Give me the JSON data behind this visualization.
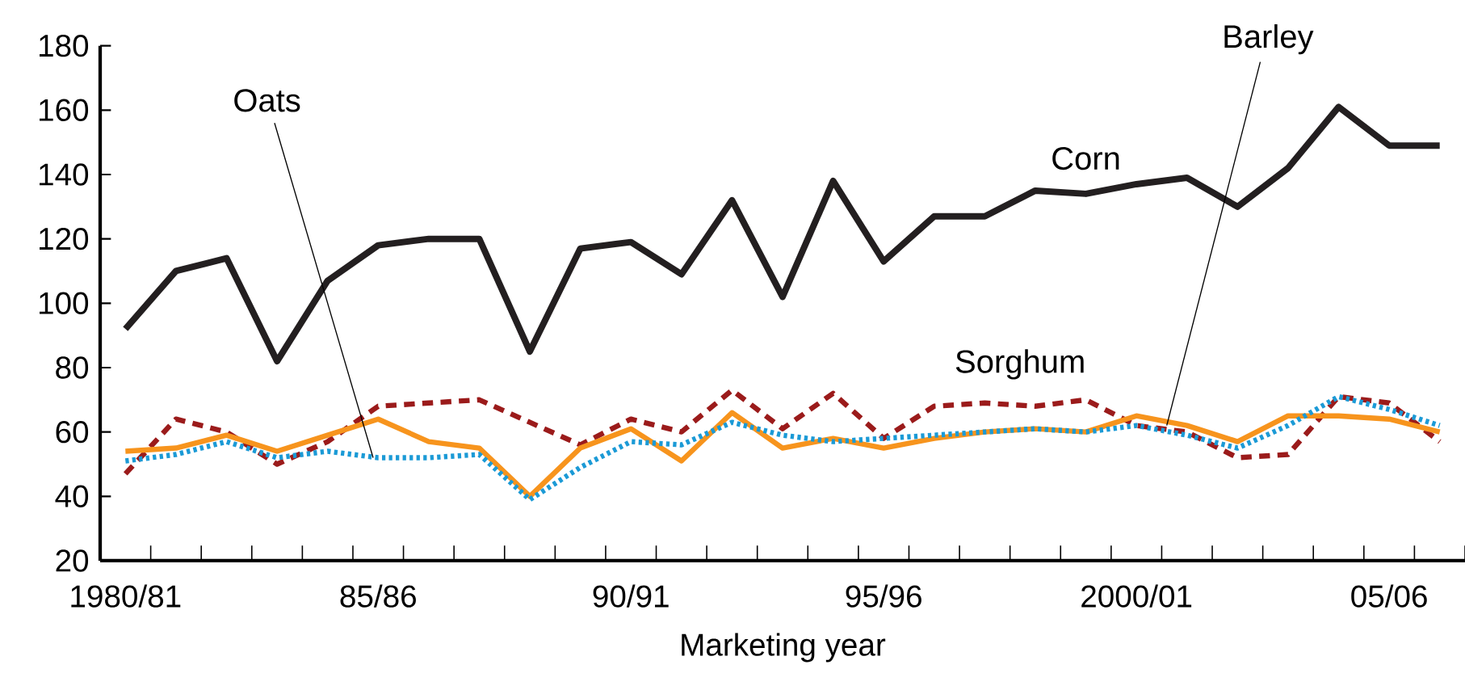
{
  "chart_data": {
    "type": "line",
    "xlabel": "Marketing year",
    "categories": [
      "1980/81",
      null,
      null,
      null,
      null,
      "85/86",
      null,
      null,
      null,
      null,
      "90/91",
      null,
      null,
      null,
      null,
      "95/96",
      null,
      null,
      null,
      null,
      "2000/01",
      null,
      null,
      null,
      null,
      "05/06",
      null
    ],
    "series": [
      {
        "name": "Corn",
        "color": "#231f20",
        "line_style": "solid",
        "values": [
          92,
          110,
          114,
          82,
          107,
          118,
          120,
          120,
          85,
          117,
          119,
          109,
          132,
          102,
          138,
          113,
          127,
          127,
          135,
          134,
          137,
          139,
          130,
          142,
          161,
          149,
          149
        ]
      },
      {
        "name": "Sorghum",
        "color": "#9b1b1b",
        "line_style": "dashed",
        "values": [
          47,
          64,
          60,
          50,
          57,
          68,
          69,
          70,
          63,
          56,
          64,
          60,
          73,
          61,
          72,
          58,
          68,
          69,
          68,
          70,
          62,
          60,
          52,
          53,
          71,
          69,
          57
        ]
      },
      {
        "name": "Barley",
        "color": "#f7941d",
        "line_style": "solid",
        "values": [
          54,
          55,
          59,
          54,
          59,
          64,
          57,
          55,
          40,
          55,
          61,
          51,
          66,
          55,
          58,
          55,
          58,
          60,
          61,
          60,
          65,
          62,
          57,
          65,
          65,
          64,
          60
        ]
      },
      {
        "name": "Oats",
        "color": "#1b9ad6",
        "line_style": "dotted",
        "values": [
          51,
          53,
          57,
          52,
          54,
          52,
          52,
          53,
          39,
          49,
          57,
          56,
          63,
          59,
          57,
          58,
          59,
          60,
          61,
          60,
          62,
          59,
          55,
          62,
          71,
          67,
          62
        ]
      }
    ],
    "ylim": [
      20,
      180
    ],
    "yticks": [
      20,
      40,
      60,
      80,
      100,
      120,
      140,
      160,
      180
    ],
    "grid": false,
    "marker": "none"
  }
}
